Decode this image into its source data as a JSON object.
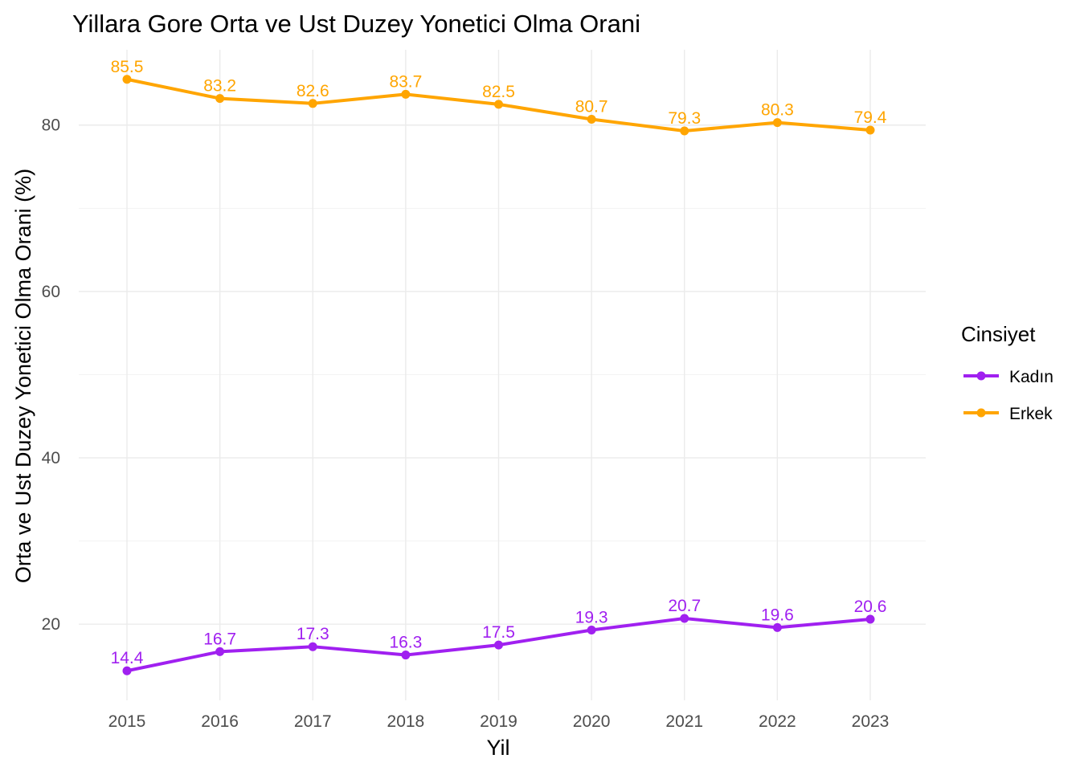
{
  "chart_data": {
    "type": "line",
    "title": "Yillara Gore Orta ve Ust Duzey Yonetici Olma Orani",
    "xlabel": "Yil",
    "ylabel": "Orta ve Ust Duzey Yonetici Olma Orani (%)",
    "x": [
      2015,
      2016,
      2017,
      2018,
      2019,
      2020,
      2021,
      2022,
      2023
    ],
    "x_tick_labels": [
      "2015",
      "2016",
      "2017",
      "2018",
      "2019",
      "2020",
      "2021",
      "2022",
      "2023"
    ],
    "y_ticks": [
      20,
      40,
      60,
      80
    ],
    "y_tick_labels": [
      "20",
      "40",
      "60",
      "80"
    ],
    "ylim": [
      10.85,
      89.05
    ],
    "grid": true,
    "legend": {
      "title": "Cinsiyet",
      "position": "right"
    },
    "series": [
      {
        "name": "Kadın",
        "color": "#a020f0",
        "values": [
          14.4,
          16.7,
          17.3,
          16.3,
          17.5,
          19.3,
          20.7,
          19.6,
          20.6
        ],
        "labels": [
          "14.4",
          "16.7",
          "17.3",
          "16.3",
          "17.5",
          "19.3",
          "20.7",
          "19.6",
          "20.6"
        ]
      },
      {
        "name": "Erkek",
        "color": "#ffa500",
        "values": [
          85.5,
          83.2,
          82.6,
          83.7,
          82.5,
          80.7,
          79.3,
          80.3,
          79.4
        ],
        "labels": [
          "85.5",
          "83.2",
          "82.6",
          "83.7",
          "82.5",
          "80.7",
          "79.3",
          "80.3",
          "79.4"
        ]
      }
    ]
  }
}
